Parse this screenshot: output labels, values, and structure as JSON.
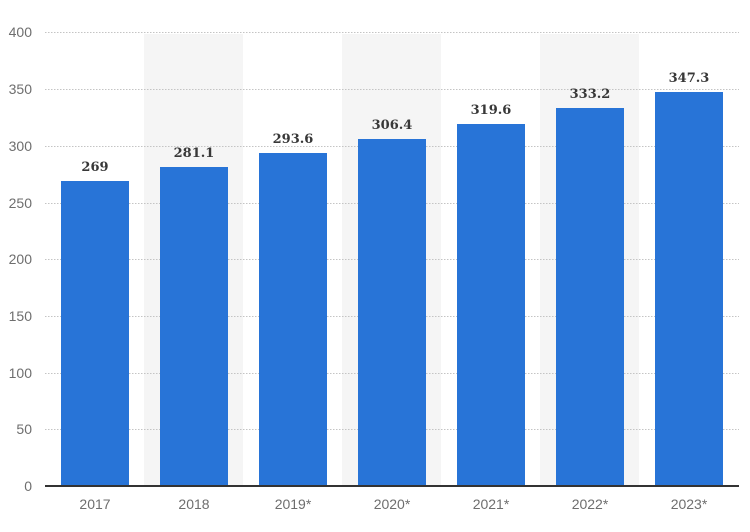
{
  "chart_data": {
    "type": "bar",
    "title": "",
    "xlabel": "",
    "ylabel": "",
    "categories": [
      "2017",
      "2018",
      "2019*",
      "2020*",
      "2021*",
      "2022*",
      "2023*"
    ],
    "values": [
      269,
      281.1,
      293.6,
      306.4,
      319.6,
      333.2,
      347.3
    ],
    "value_labels": [
      "269",
      "281.1",
      "293.6",
      "306.4",
      "319.6",
      "333.2",
      "347.3"
    ],
    "ylim": [
      0,
      400
    ],
    "yticks": [
      0,
      50,
      100,
      150,
      200,
      250,
      300,
      350,
      400
    ],
    "grid": "horizontal-dotted",
    "legend": "none",
    "shaded_columns": [
      "2018",
      "2020*",
      "2022*"
    ],
    "colors": {
      "bar": "#2874d7",
      "column_band": "#f5f5f5",
      "gridline": "#c4c4c4",
      "axis_line": "#333333",
      "value_label_text": "#383838",
      "tick_label_text": "#6e6e6e",
      "background": "#ffffff"
    }
  }
}
